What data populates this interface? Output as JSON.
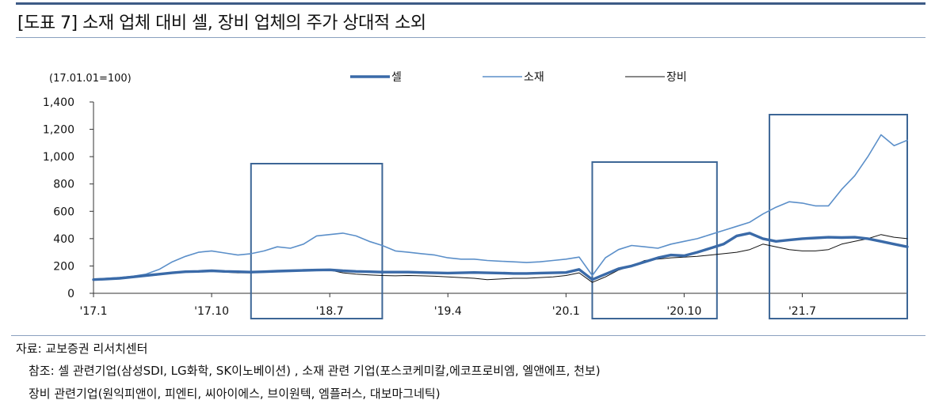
{
  "header": {
    "title": "[도표 7] 소재 업체 대비 셀, 장비 업체의 주가 상대적 소외"
  },
  "footer": {
    "source": "자료: 교보증권 리서치센터",
    "note_line1": "참조: 셀 관련기업(삼성SDI, LG화학, SK이노베이션) , 소재 관련 기업(포스코케미칼,에코프로비엠, 엘앤에프, 천보)",
    "note_line2": "장비 관련기업(원익피앤이, 피엔티, 씨아이에스, 브이원텍, 엠플러스, 대보마그네틱)"
  },
  "chart_data": {
    "type": "line",
    "title": "",
    "unit_note": "(17.01.01=100)",
    "xlabel": "",
    "ylabel": "",
    "ylim": [
      0,
      1400
    ],
    "yticks": [
      0,
      200,
      400,
      600,
      800,
      1000,
      1200,
      1400
    ],
    "ytick_labels": [
      "0",
      "200",
      "400",
      "600",
      "800",
      "1,000",
      "1,200",
      "1,400"
    ],
    "xlim": [
      0,
      62
    ],
    "xtick_positions": [
      0,
      9,
      18,
      27,
      36,
      45,
      54
    ],
    "xtick_labels": [
      "'17.1",
      "'17.10",
      "'18.7",
      "'19.4",
      "'20.1",
      "'20.10",
      "'21.7"
    ],
    "legend_position": "top-center",
    "grid": false,
    "highlight_boxes": [
      [
        12,
        22
      ],
      [
        38,
        47.5
      ],
      [
        51.5,
        62
      ]
    ],
    "x": [
      0,
      1,
      2,
      3,
      4,
      5,
      6,
      7,
      8,
      9,
      10,
      11,
      12,
      13,
      14,
      15,
      16,
      17,
      18,
      19,
      20,
      21,
      22,
      23,
      24,
      25,
      26,
      27,
      28,
      29,
      30,
      31,
      32,
      33,
      34,
      35,
      36,
      37,
      38,
      39,
      40,
      41,
      42,
      43,
      44,
      45,
      46,
      47,
      48,
      49,
      50,
      51,
      52,
      53,
      54,
      55,
      56,
      57,
      58,
      59,
      60,
      61,
      62
    ],
    "series": [
      {
        "name": "셀",
        "color": "#3a6aa8",
        "width": 3.4,
        "values": [
          100,
          105,
          110,
          120,
          130,
          140,
          150,
          158,
          160,
          165,
          160,
          158,
          155,
          158,
          162,
          165,
          168,
          170,
          172,
          165,
          160,
          158,
          155,
          155,
          155,
          152,
          150,
          148,
          150,
          152,
          150,
          148,
          145,
          145,
          148,
          150,
          152,
          175,
          100,
          140,
          180,
          200,
          230,
          260,
          280,
          275,
          300,
          330,
          360,
          420,
          440,
          400,
          380,
          390,
          400,
          405,
          410,
          408,
          410,
          400,
          380,
          360,
          340
        ]
      },
      {
        "name": "소재",
        "color": "#5b8fc9",
        "width": 1.6,
        "values": [
          100,
          110,
          115,
          125,
          140,
          175,
          230,
          270,
          300,
          310,
          295,
          280,
          290,
          310,
          340,
          330,
          360,
          420,
          430,
          440,
          420,
          380,
          350,
          310,
          300,
          290,
          280,
          260,
          250,
          250,
          240,
          235,
          230,
          225,
          230,
          240,
          250,
          265,
          130,
          260,
          320,
          350,
          340,
          330,
          360,
          380,
          400,
          430,
          460,
          490,
          520,
          580,
          630,
          670,
          660,
          640,
          640,
          760,
          860,
          1000,
          1160,
          1080,
          1120
        ]
      },
      {
        "name": "장비",
        "color": "#111111",
        "width": 1.0,
        "values": [
          100,
          103,
          108,
          118,
          125,
          135,
          150,
          155,
          158,
          160,
          155,
          150,
          150,
          155,
          160,
          165,
          170,
          175,
          170,
          150,
          140,
          135,
          130,
          128,
          130,
          128,
          125,
          120,
          115,
          110,
          100,
          105,
          110,
          110,
          115,
          120,
          130,
          150,
          80,
          120,
          170,
          200,
          240,
          250,
          260,
          265,
          270,
          280,
          290,
          300,
          320,
          360,
          340,
          320,
          310,
          310,
          320,
          360,
          380,
          400,
          430,
          410,
          400
        ]
      }
    ]
  }
}
